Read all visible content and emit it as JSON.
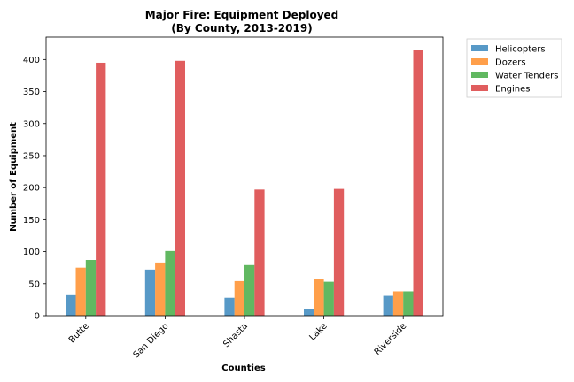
{
  "chart_data": {
    "type": "bar",
    "title": "Major Fire: Equipment Deployed",
    "subtitle": "(By County, 2013-2019)",
    "xlabel": "Counties",
    "ylabel": "Number of Equipment",
    "categories": [
      "Butte",
      "San Diego",
      "Shasta",
      "Lake",
      "Riverside"
    ],
    "ylim": [
      0,
      435
    ],
    "yticks": [
      0,
      50,
      100,
      150,
      200,
      250,
      300,
      350,
      400
    ],
    "grid": false,
    "legend_position": "outside-top-right",
    "series": [
      {
        "name": "Helicopters",
        "color": "#1f77b4",
        "values": [
          32,
          72,
          28,
          10,
          31
        ]
      },
      {
        "name": "Dozers",
        "color": "#ff7f0e",
        "values": [
          75,
          83,
          54,
          58,
          38
        ]
      },
      {
        "name": "Water Tenders",
        "color": "#2ca02c",
        "values": [
          87,
          101,
          79,
          53,
          38
        ]
      },
      {
        "name": "Engines",
        "color": "#d62728",
        "values": [
          395,
          398,
          197,
          198,
          415
        ]
      }
    ]
  }
}
